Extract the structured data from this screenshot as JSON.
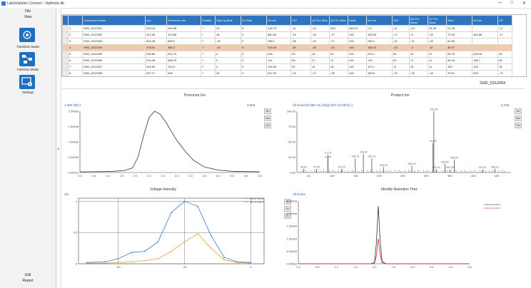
{
  "window": {
    "title": "LabSolutions Connect - Optimize.db",
    "controls": [
      "—",
      "□",
      "✕"
    ]
  },
  "menu": {
    "file": "File",
    "view": "View",
    "tiles": [
      {
        "label": "Transition Mode",
        "icon": "transition-mode-icon"
      },
      {
        "label": "Interface Mode",
        "icon": "interface-mode-icon"
      },
      {
        "label": "Settings",
        "icon": "settings-icon"
      }
    ],
    "edit": "Edit",
    "report": "Report"
  },
  "table": {
    "headers": [
      "",
      "",
      "Compound Name",
      "m/z",
      "Precursor m/z",
      "Polarity",
      "Step by Bias",
      "DL Bias",
      "Int m/z",
      "CE+",
      "Q3 Pre Bias",
      "Q1 Pre Bias",
      "Dwell",
      "Int m/z",
      "CE2",
      "Q3 Pre Bias2",
      "Q1 Pre Bias2",
      "Area",
      "Int m/z",
      "CE"
    ],
    "rows": [
      [
        "1",
        "SHD_0312001",
        "239.15",
        "240.66",
        "+",
        "20",
        "0",
        "146.70",
        "-11",
        "-15",
        "100",
        "166.15",
        "-13",
        "-11",
        "-19",
        "24.28",
        "",
        "-1"
      ],
      [
        "2",
        "SHD_0312002",
        "422.45",
        "423.66",
        "+",
        "45",
        "0",
        "360.05",
        "-19",
        "-29",
        "-27",
        "100",
        "408.05",
        "-17",
        "-9",
        "-29"
      ],
      [
        "3",
        "SHD_0312003",
        "404.28",
        "405.2",
        "+",
        "-20",
        "0",
        "185.1",
        "-26",
        "-19",
        "-17",
        "100",
        "783.1",
        "-41",
        "-11",
        "-16"
      ],
      [
        "4",
        "SHD_0312004",
        "478.51",
        "480.2",
        "+",
        "-10",
        "0",
        "315.26",
        "-20",
        "-16",
        "-22",
        "100",
        "166.15",
        "-19",
        "-2",
        "-37"
      ],
      [
        "5",
        "SHD_0312005",
        "256.66",
        "232.75",
        "+",
        "0",
        "0",
        "208",
        "33",
        "18",
        "25",
        "100",
        "225.1",
        "34",
        "16",
        "21"
      ],
      [
        "6",
        "SHD_0312006",
        "210.05",
        "268.75",
        "+",
        "0",
        "0",
        "131",
        "39",
        "17",
        "12",
        "100",
        "132",
        "42",
        "17",
        "11"
      ],
      [
        "7",
        "SHD_0312007",
        "243.69",
        "243.6",
        "+",
        "0",
        "0",
        "119.05",
        "22",
        "16",
        "18",
        "100",
        "121.1",
        "14",
        "15",
        "11"
      ],
      [
        "8",
        "SHD_0312008",
        "337.17",
        "338",
        "+",
        "20",
        "0",
        "247.00",
        "-24",
        "-17",
        "-26",
        "100",
        "169.6",
        "-29",
        "-16",
        "-16"
      ]
    ],
    "extra_col_values": [
      [
        "24.28",
        "",
        "-17"
      ],
      [
        "73.16",
        "404.88",
        "-17"
      ],
      [
        "31.56",
        "",
        ""
      ],
      [
        "46.47",
        "",
        ""
      ],
      [
        "60.75",
        "226.05",
        "28"
      ],
      [
        "66.45",
        "158.7",
        "28"
      ],
      [
        "182",
        "126",
        "18"
      ],
      [
        "76.51",
        "203",
        "-75"
      ]
    ]
  },
  "sample_name": "SHD_0312004",
  "precursor": {
    "title": "Precursor Ion",
    "label": "1:480.20(+)",
    "intensity": "2.0e6",
    "buttons": [
      "Dir",
      "Sav",
      "Ext"
    ]
  },
  "product": {
    "title": "Product Ion",
    "label": "All Event:(0.068->0.136)(0.087->0.097)(+)",
    "intensity": "5.7e6",
    "buttons": [
      "Dir",
      "Sav",
      "Ext"
    ]
  },
  "voltage": {
    "title": "Voltage-Intensity",
    "label": "CE",
    "buttons": [
      "Dir",
      "Ex",
      "Sv"
    ],
    "legend": [
      "480.10>316.05",
      "480.10>188.15"
    ]
  },
  "rt": {
    "title": "Identify Retention Time",
    "label": "All Event",
    "legend": [
      "1:480.20>315.05",
      "2:480.20>188.15"
    ]
  },
  "chart_data": [
    {
      "type": "line",
      "title": "Precursor Ion",
      "xlim": [
        0.0,
        6.5
      ],
      "ylim": [
        0,
        2000000
      ],
      "x_ticks": [
        "0.0",
        "0.25",
        "0.5",
        "0.75",
        "1.0",
        "1.25",
        "1.5",
        "1.75",
        "2.0",
        "2.25",
        "2.5",
        "2.75",
        "3.0",
        "3.25",
        "3.5",
        "3.75",
        "4.0",
        "4.25",
        "4.5",
        "4.75",
        "5.0",
        "5.25",
        "5.5",
        "5.75",
        "6.0",
        "6.25",
        "6.5"
      ],
      "y_ticks": [
        "0.000e0",
        "5.000e5",
        "1.000e6",
        "1.500e6",
        "2.000e6"
      ],
      "x": [
        0,
        0.4,
        0.8,
        1.2,
        1.6,
        1.9,
        2.1,
        2.3,
        2.5,
        2.7,
        2.9,
        3.1,
        3.3,
        3.5,
        3.8,
        4.1,
        4.5,
        5.0,
        5.5,
        6.0,
        6.5
      ],
      "y": [
        20000,
        25000,
        30000,
        40000,
        60000,
        150000,
        500000,
        1200000,
        1800000,
        2000000,
        1900000,
        1650000,
        1350000,
        1050000,
        700000,
        400000,
        180000,
        80000,
        40000,
        30000,
        25000
      ]
    },
    {
      "type": "bar",
      "title": "Product Ion",
      "xlim": [
        25,
        480
      ],
      "ylim": [
        0,
        100
      ],
      "y_ticks": [
        "0.00",
        "25.00",
        "50.00",
        "75.00",
        "100.00"
      ],
      "peaks": [
        {
          "mz": 38.95,
          "value": 6,
          "label": "38.95"
        },
        {
          "mz": 67.05,
          "value": 6,
          "label": "67.05"
        },
        {
          "mz": 91.05,
          "value": 22,
          "label": "91.05"
        },
        {
          "mz": 91.1,
          "value": 29,
          "label": "91.10"
        },
        {
          "mz": 120.2,
          "value": 6,
          "label": "120.20"
        },
        {
          "mz": 149.1,
          "value": 23,
          "label": "149.10"
        },
        {
          "mz": 166.2,
          "value": 30,
          "label": "166.20"
        },
        {
          "mz": 184.2,
          "value": 23,
          "label": "184.20"
        },
        {
          "mz": 209.0,
          "value": 9,
          "label": "209.00"
        },
        {
          "mz": 269.15,
          "value": 11,
          "label": "269.15"
        },
        {
          "mz": 314.3,
          "value": 48,
          "label": "314.30"
        },
        {
          "mz": 316.05,
          "value": 100,
          "label": "316.05"
        },
        {
          "mz": 321.0,
          "value": 5,
          "label": "321.00"
        },
        {
          "mz": 339.8,
          "value": 14,
          "label": "339.80"
        },
        {
          "mz": 350.3,
          "value": 5,
          "label": "350.30"
        },
        {
          "mz": 359.6,
          "value": 21,
          "label": "359.60"
        },
        {
          "mz": 419.3,
          "value": 5,
          "label": "419.30"
        },
        {
          "mz": 446.0,
          "value": 6,
          "label": "446.00"
        }
      ]
    },
    {
      "type": "line",
      "title": "Voltage-Intensity",
      "xlim": [
        -65,
        5
      ],
      "ylim": [
        0,
        1.05
      ],
      "x_ticks": [
        "-50",
        "-25",
        "0"
      ],
      "y_ticks": [
        "0",
        "0.5",
        "1"
      ],
      "series": [
        {
          "name": "480.10>316.05",
          "color": "#3a7bd5",
          "x": [
            -62,
            -55,
            -50,
            -45,
            -40,
            -35,
            -30,
            -25,
            -20,
            -15,
            -10,
            -5,
            0
          ],
          "y": [
            0.02,
            0.03,
            0.08,
            0.18,
            0.2,
            0.35,
            0.82,
            1.0,
            0.92,
            0.45,
            0.1,
            0.03,
            0.02
          ]
        },
        {
          "name": "480.10>188.15",
          "color": "#f0a030",
          "x": [
            -62,
            -55,
            -50,
            -45,
            -40,
            -35,
            -30,
            -25,
            -20,
            -15,
            -10,
            -5,
            0
          ],
          "y": [
            0.01,
            0.01,
            0.02,
            0.03,
            0.05,
            0.08,
            0.2,
            0.35,
            0.48,
            0.25,
            0.06,
            0.02,
            0.01
          ]
        }
      ]
    },
    {
      "type": "line",
      "title": "Identify Retention Time",
      "xlim": [
        0,
        4.5
      ],
      "ylim": [
        0,
        2500000
      ],
      "x_ticks": [
        "0.0",
        "0.5",
        "1.0",
        "1.5",
        "2.0",
        "2.5",
        "3.0",
        "3.5",
        "4.0",
        "4.5"
      ],
      "y_ticks": [
        "0.000e0",
        "5.000e5",
        "1.000e6",
        "1.500e6",
        "2.000e6",
        "2.500e6"
      ],
      "series": [
        {
          "name": "1:480.20>315.05",
          "color": "#333333",
          "x": [
            0,
            1.9,
            2.0,
            2.05,
            2.1,
            2.15,
            2.2,
            2.3,
            4.5
          ],
          "y": [
            0,
            0,
            50000,
            800000,
            2300000,
            900000,
            100000,
            0,
            0
          ]
        },
        {
          "name": "2:480.20>188.15",
          "color": "#d03040",
          "x": [
            0,
            1.9,
            2.0,
            2.05,
            2.1,
            2.15,
            2.2,
            2.3,
            4.5
          ],
          "y": [
            0,
            0,
            20000,
            300000,
            1000000,
            350000,
            40000,
            0,
            0
          ]
        }
      ]
    }
  ]
}
